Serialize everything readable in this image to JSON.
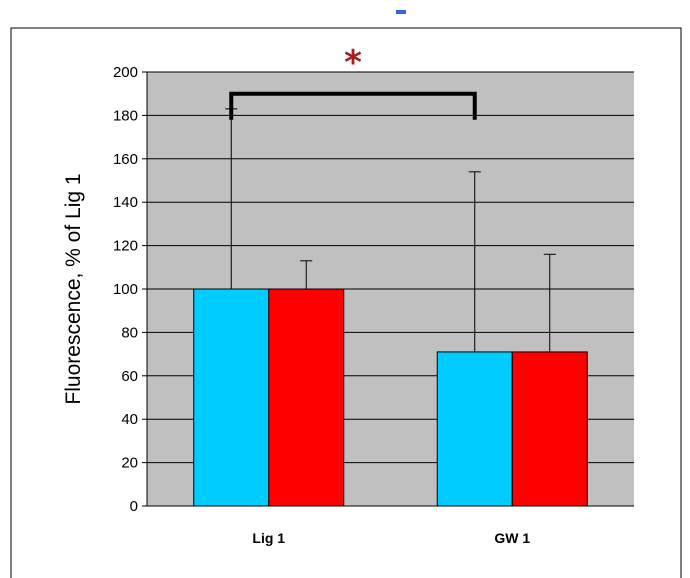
{
  "colors": {
    "marker": "#3366e6",
    "plot_bg": "#c0c0c0",
    "frame": "#000000",
    "star": "#a52020"
  },
  "chart_data": {
    "type": "bar",
    "categories": [
      "Lig 1",
      "GW 1"
    ],
    "series": [
      {
        "color": "#00ccff",
        "values": [
          100,
          71
        ],
        "error_upper": [
          183,
          154
        ]
      },
      {
        "color": "#ff0000",
        "values": [
          100,
          71
        ],
        "error_upper": [
          113,
          116
        ]
      }
    ],
    "ylabel": "Fluorescence, % of Lig 1",
    "xlabel": "",
    "ylim": [
      0,
      200
    ],
    "yticks": [
      0,
      20,
      40,
      60,
      80,
      100,
      120,
      140,
      160,
      180,
      200
    ],
    "grid": true,
    "significance": {
      "label": "*",
      "between": [
        "Lig 1",
        "GW 1"
      ],
      "bracket_y": 190,
      "bracket_drop_to": 178
    }
  }
}
